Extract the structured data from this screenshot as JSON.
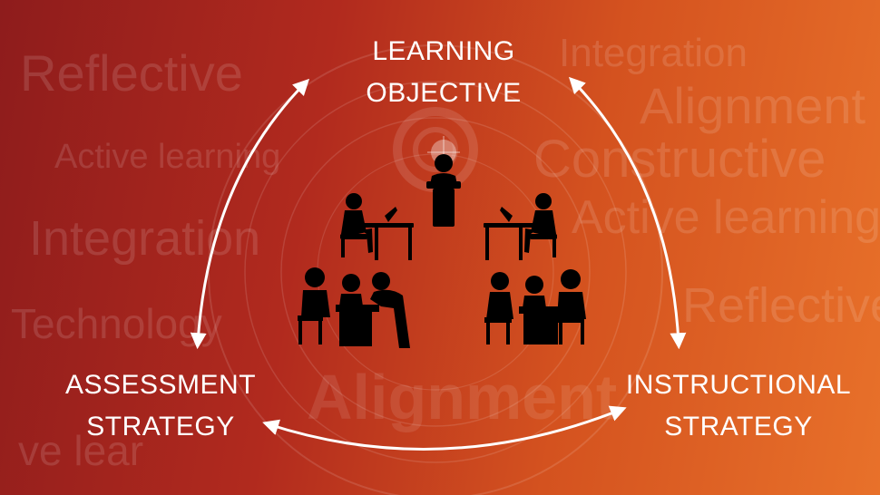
{
  "background_words": [
    "Reflective",
    "Active learning",
    "Integration",
    "Technology",
    "ve lear",
    "Integration",
    "Alignment",
    "Constructive",
    "Active learning",
    "Reflective",
    "Alignment"
  ],
  "nodes": {
    "top": {
      "line1": "LEARNING",
      "line2": "OBJECTIVE"
    },
    "left": {
      "line1": "ASSESSMENT",
      "line2": "STRATEGY"
    },
    "right": {
      "line1": "INSTRUCTIONAL",
      "line2": "STRATEGY"
    }
  },
  "icons": [
    "presenter-at-podium-icon",
    "person-at-laptop-icon",
    "group-discussion-icon"
  ],
  "colors": {
    "bg_dark": "#8e1c1c",
    "bg_light": "#e8712a",
    "foreground": "#ffffff",
    "silhouette": "#000000"
  }
}
